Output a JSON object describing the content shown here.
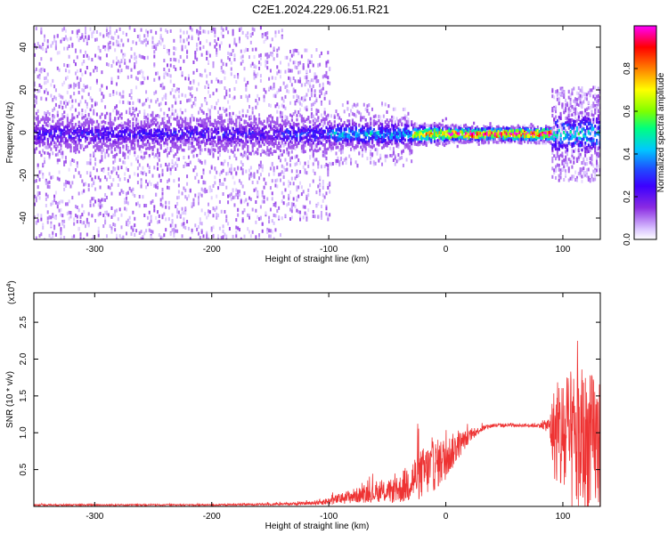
{
  "title": "C2E1.2024.229.06.51.R21",
  "chart_data": [
    {
      "type": "heatmap",
      "xlabel": "Height of straight line (km)",
      "ylabel": "Frequency (Hz)",
      "xlim": [
        -352,
        132
      ],
      "ylim": [
        -50,
        50
      ],
      "x_ticks": [
        -300,
        -200,
        -100,
        0,
        100
      ],
      "x_tick_labels": [
        "-300",
        "-200",
        "-100",
        "0",
        "100"
      ],
      "y_ticks": [
        -40,
        -20,
        0,
        20,
        40
      ],
      "y_tick_labels": [
        "-40",
        "-20",
        "0",
        "20",
        "40"
      ],
      "colorbar": {
        "label": "Normalized spectral amplitude",
        "range": [
          0,
          1
        ],
        "ticks": [
          0.0,
          0.2,
          0.4,
          0.6,
          0.8
        ],
        "tick_labels": [
          "0.0",
          "0.2",
          "0.4",
          "0.6",
          "0.8"
        ],
        "colormap": [
          "#ffffff",
          "#d9c2ff",
          "#8a2be2",
          "#3c00ff",
          "#1f4dff",
          "#00c8ff",
          "#00ff7f",
          "#7fff00",
          "#ffff00",
          "#ff7f00",
          "#ff0000",
          "#ff00ff"
        ]
      },
      "bands": [
        {
          "x": [
            -352,
            -140
          ],
          "half_width_hz": 7,
          "amplitude": 0.25,
          "scatter_halo_hz": 50
        },
        {
          "x": [
            -140,
            -100
          ],
          "half_width_hz": 7,
          "amplitude": 0.3,
          "scatter_halo_hz": 40
        },
        {
          "x": [
            -100,
            -30
          ],
          "half_width_hz": 6,
          "amplitude": 0.4,
          "scatter_halo_hz": 15
        },
        {
          "x": [
            -30,
            0
          ],
          "half_width_hz": 4,
          "amplitude": 0.75,
          "scatter_halo_hz": 5
        },
        {
          "x": [
            0,
            90
          ],
          "half_width_hz": 3,
          "amplitude": 0.95,
          "scatter_halo_hz": 4
        },
        {
          "x": [
            90,
            132
          ],
          "half_width_hz": 10,
          "amplitude": 0.45,
          "scatter_halo_hz": 22
        }
      ],
      "grid": false
    },
    {
      "type": "line",
      "xlabel": "Height of straight line (km)",
      "ylabel": "SNR (10 * v/v)",
      "y_multiplier_label": "(x10",
      "y_multiplier_exp": "4",
      "y_multiplier_close": ")",
      "xlim": [
        -352,
        132
      ],
      "ylim": [
        0,
        2.9
      ],
      "x_ticks": [
        -300,
        -200,
        -100,
        0,
        100
      ],
      "x_tick_labels": [
        "-300",
        "-200",
        "-100",
        "0",
        "100"
      ],
      "y_ticks": [
        0.5,
        1.0,
        1.5,
        2.0,
        2.5
      ],
      "y_tick_labels": [
        "0.5",
        "1.0",
        "1.5",
        "2.0",
        "2.5"
      ],
      "line_color": "#ee3333",
      "series": [
        {
          "x": [
            -352,
            -300,
            -250,
            -200,
            -150,
            -120,
            -100,
            -80,
            -60,
            -40,
            -30,
            -20,
            -10,
            0,
            10,
            20,
            30,
            40,
            60,
            80,
            88,
            92,
            100,
            110,
            120,
            132
          ],
          "y": [
            0.02,
            0.02,
            0.02,
            0.02,
            0.03,
            0.04,
            0.07,
            0.14,
            0.18,
            0.22,
            0.35,
            0.45,
            0.55,
            0.65,
            0.82,
            0.95,
            1.05,
            1.1,
            1.1,
            1.1,
            1.1,
            1.0,
            0.9,
            0.85,
            0.85,
            0.85
          ],
          "noise": [
            0.01,
            0.01,
            0.01,
            0.01,
            0.015,
            0.02,
            0.05,
            0.1,
            0.12,
            0.18,
            0.3,
            0.35,
            0.35,
            0.3,
            0.2,
            0.08,
            0.04,
            0.03,
            0.02,
            0.03,
            0.1,
            0.6,
            0.9,
            1.0,
            1.0,
            0.9
          ]
        }
      ],
      "grid": false
    }
  ]
}
